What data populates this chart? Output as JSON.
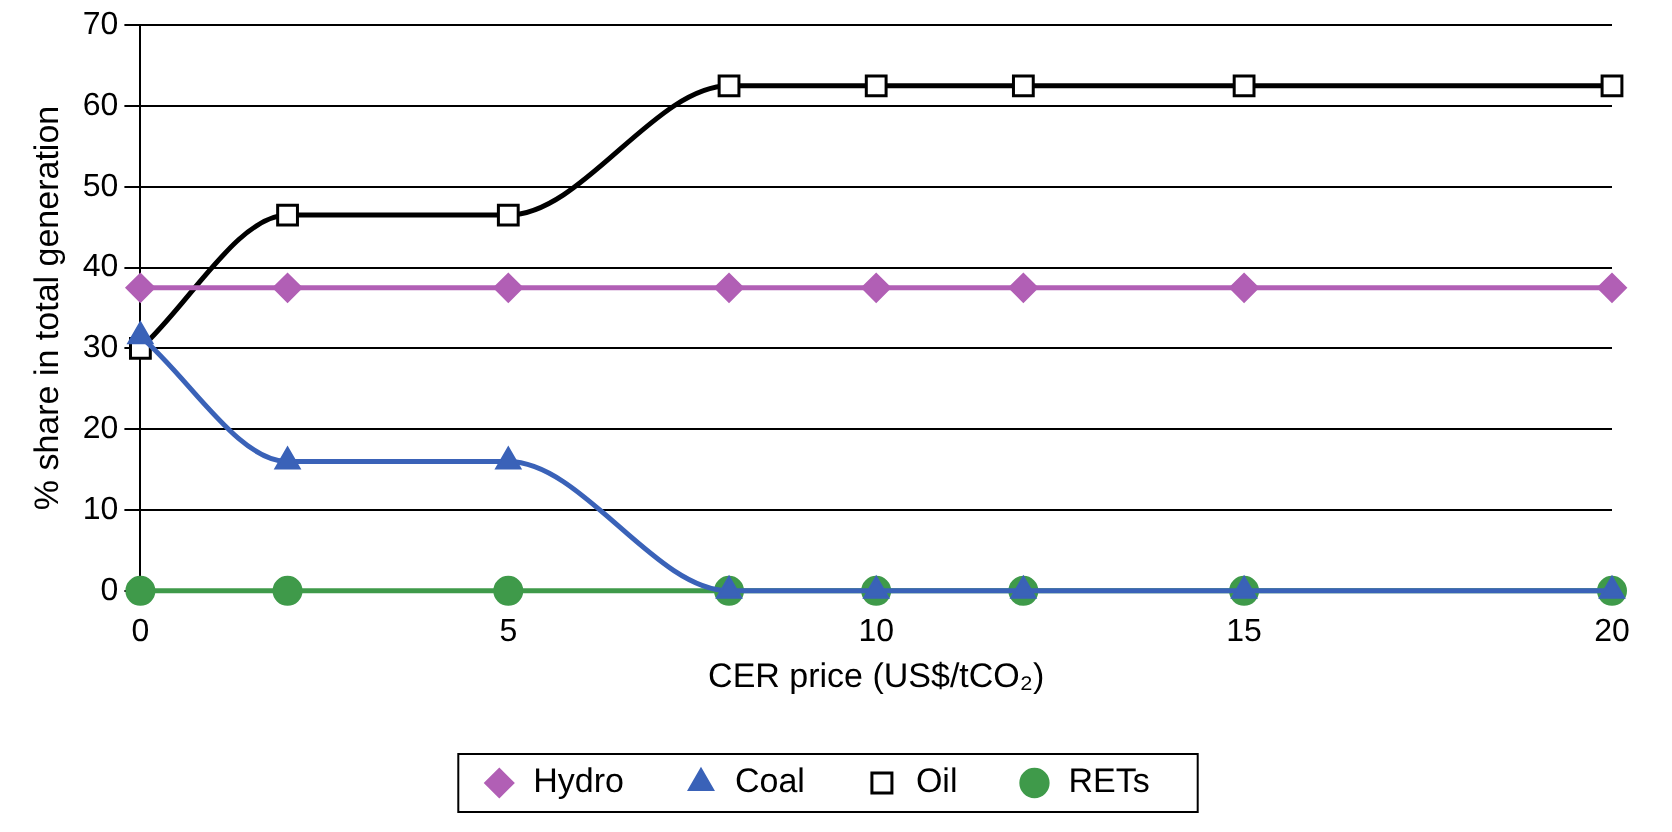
{
  "chart_data": {
    "type": "line",
    "xlabel": "CER price (US$/tCO₂)",
    "ylabel": "% share in total generation",
    "x": [
      0,
      2,
      5,
      8,
      10,
      12,
      15,
      20
    ],
    "series": [
      {
        "name": "Hydro",
        "color": "#b15fb5",
        "marker": "diamond",
        "values": [
          37.5,
          37.5,
          37.5,
          37.5,
          37.5,
          37.5,
          37.5,
          37.5
        ]
      },
      {
        "name": "Coal",
        "color": "#3a62b8",
        "marker": "triangle",
        "values": [
          31.5,
          16,
          16,
          0,
          0,
          0,
          0,
          0
        ]
      },
      {
        "name": "Oil",
        "color": "#000000",
        "marker": "square",
        "values": [
          30,
          46.5,
          46.5,
          62.5,
          62.5,
          62.5,
          62.5,
          62.5
        ]
      },
      {
        "name": "RETs",
        "color": "#3f9a4a",
        "marker": "circle",
        "values": [
          0,
          0,
          0,
          0,
          0,
          0,
          0,
          0
        ]
      }
    ],
    "xlim": [
      0,
      20
    ],
    "xticks": [
      0,
      5,
      10,
      15,
      20
    ],
    "ylim": [
      0,
      70
    ],
    "yticks": [
      0,
      10,
      20,
      30,
      40,
      50,
      60,
      70
    ],
    "grid": "y",
    "legend": "bottom",
    "line_style": "solid"
  }
}
